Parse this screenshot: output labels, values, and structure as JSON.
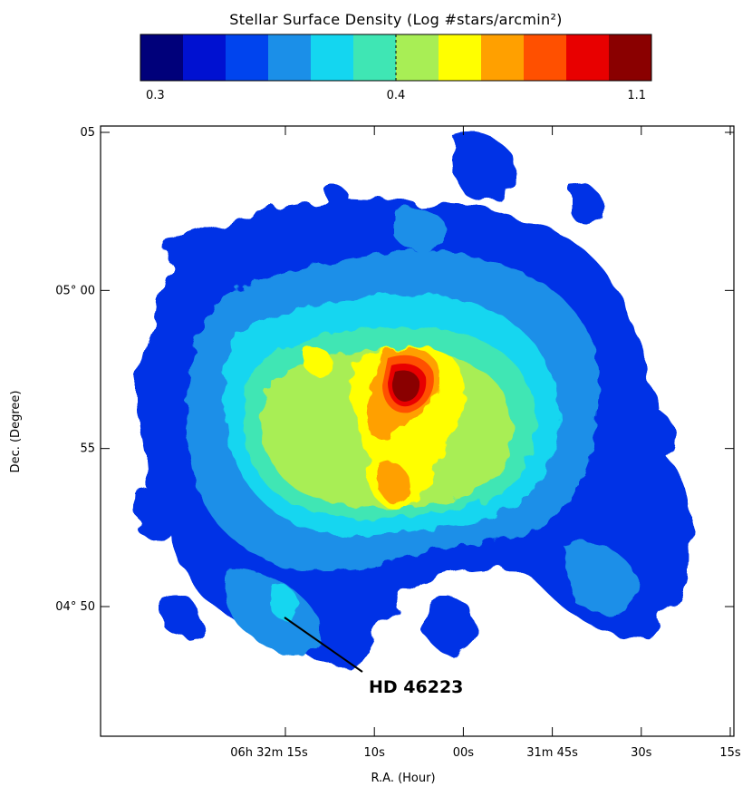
{
  "chart_data": {
    "type": "heatmap",
    "title": "Stellar Surface Density (Log #stars/arcmin²)",
    "colorbar": {
      "colors": [
        "#00007a",
        "#0011d1",
        "#0044ee",
        "#1b8fe8",
        "#14d6f0",
        "#3fe6b4",
        "#a8ee55",
        "#ffff00",
        "#ffa000",
        "#ff5000",
        "#e80000",
        "#8a0000"
      ],
      "tick_labels": [
        "0.3",
        "0.4",
        "1.1"
      ],
      "tick_values": [
        0.3,
        0.4,
        1.1
      ]
    },
    "xlabel": "R.A. (Hour)",
    "ylabel": "Dec. (Degree)",
    "x_ticks": [
      "06h 32m 15s",
      "10s",
      "00s",
      "31m 45s",
      "30s",
      "15s"
    ],
    "y_ticks": [
      "05",
      "05° 00",
      "55",
      "04° 50"
    ],
    "annotation": {
      "text": "HD 46223"
    },
    "grid": false,
    "peak_region": "center, just north of the middle"
  }
}
